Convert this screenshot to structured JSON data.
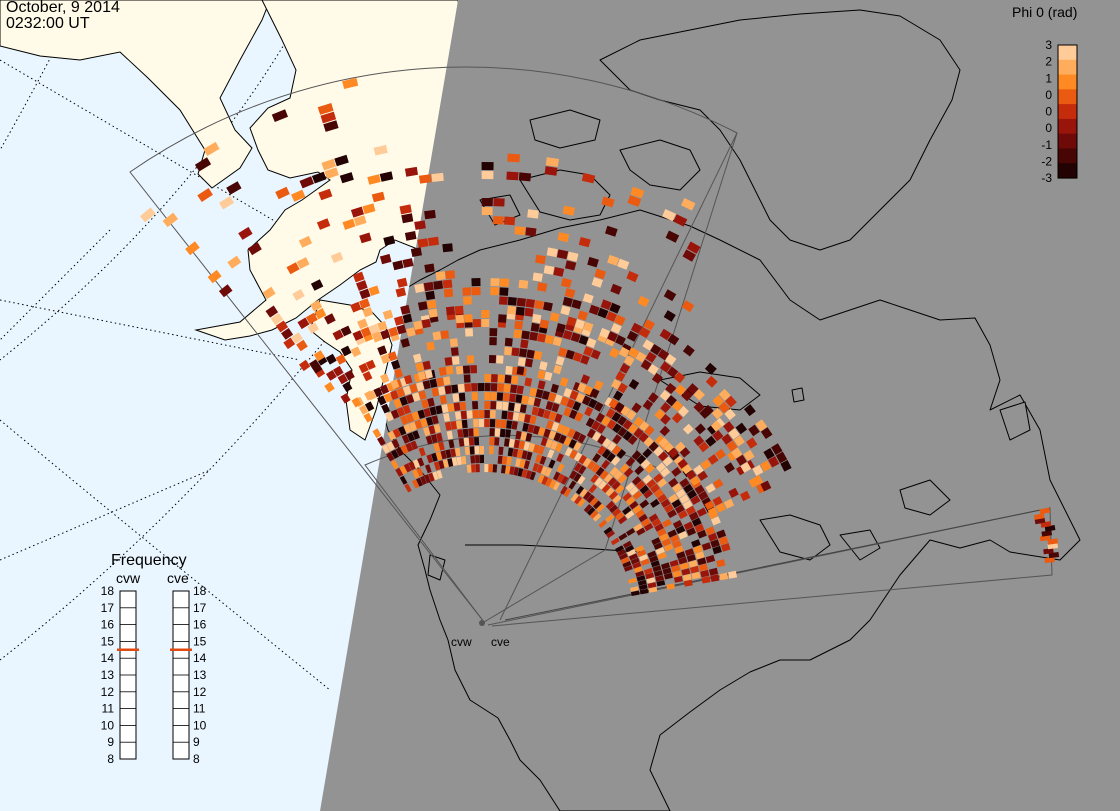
{
  "header": {
    "date": "October, 9 2014",
    "time": "0232:00 UT"
  },
  "colorbar": {
    "title": "Phi 0 (rad)",
    "ticks": [
      "3",
      "2",
      "1",
      "0",
      "0",
      "0",
      "-1",
      "-2",
      "-3"
    ],
    "colors": [
      "#ffcc99",
      "#ffad5c",
      "#ff8a24",
      "#ea5a10",
      "#c42c0c",
      "#99140a",
      "#6e0a08",
      "#470604",
      "#220202"
    ]
  },
  "frequency_panel": {
    "title": "Frequency",
    "radars": [
      {
        "name": "cvw",
        "frequency_mhz": 15
      },
      {
        "name": "cve",
        "frequency_mhz": 15
      }
    ],
    "scale": [
      "18",
      "17",
      "16",
      "15",
      "14",
      "13",
      "12",
      "11",
      "10",
      "9",
      "8"
    ],
    "marker_color": "#e04a10"
  },
  "radar_sites": [
    {
      "name": "cvw"
    },
    {
      "name": "cve"
    }
  ],
  "colors": {
    "ocean": "#eaf6ff",
    "land_day": "#fffbe8",
    "night_shade": "#939393",
    "coastline": "#000000"
  }
}
